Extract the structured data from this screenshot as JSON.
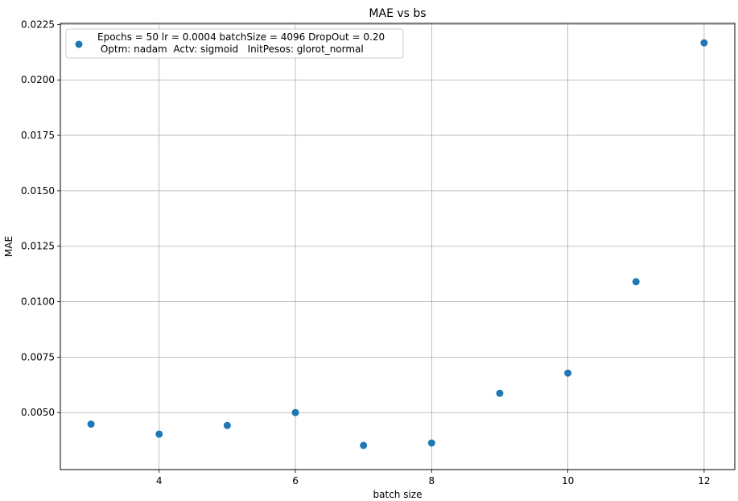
{
  "chart_data": {
    "type": "scatter",
    "title": "MAE vs bs",
    "xlabel": "batch size",
    "ylabel": "MAE",
    "xlim": [
      2.55,
      12.45
    ],
    "ylim": [
      0.00243,
      0.02255
    ],
    "xticks": [
      4,
      6,
      8,
      10,
      12
    ],
    "yticks": [
      0.005,
      0.0075,
      0.01,
      0.0125,
      0.015,
      0.0175,
      0.02,
      0.0225
    ],
    "ytick_labels": [
      "0.0050",
      "0.0075",
      "0.0100",
      "0.0125",
      "0.0150",
      "0.0175",
      "0.0200",
      "0.0225"
    ],
    "grid": true,
    "legend_position": "top-left",
    "series": [
      {
        "name": "Epochs = 50 lr = 0.0004 batchSize = 4096 DropOut = 0.20\n Optm: nadam  Actv: sigmoid   InitPesos: glorot_normal",
        "legend_lines": [
          "Epochs = 50 lr = 0.0004 batchSize = 4096 DropOut = 0.20",
          " Optm: nadam  Actv: sigmoid   InitPesos: glorot_normal"
        ],
        "color": "#1f77b4",
        "x": [
          3,
          4,
          5,
          6,
          7,
          8,
          9,
          10,
          11,
          12
        ],
        "y": [
          0.00448,
          0.00403,
          0.00442,
          0.005,
          0.00352,
          0.00363,
          0.00587,
          0.00678,
          0.0109,
          0.02167
        ]
      }
    ]
  }
}
